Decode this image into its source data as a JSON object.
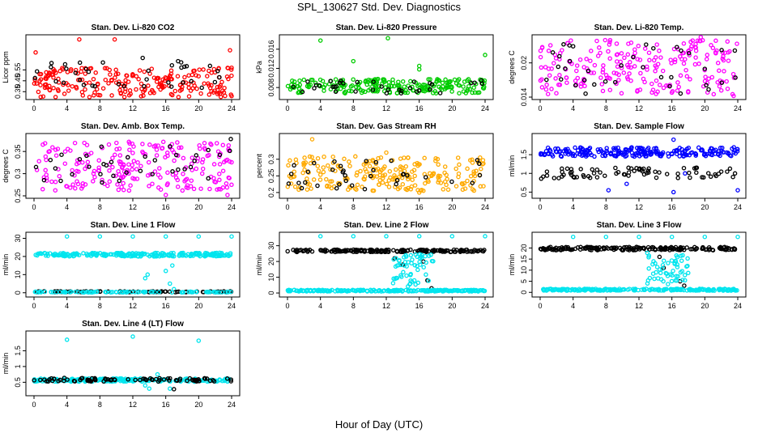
{
  "figure": {
    "title": "SPL_130627  Std. Dev. Diagnostics",
    "xlabel": "Hour of Day (UTC)"
  },
  "chart_data": [
    {
      "type": "scatter",
      "title": "Stan. Dev. Li-820 CO2",
      "ylabel": "Licor ppm",
      "xlim": [
        0,
        24
      ],
      "xticks": [
        0,
        4,
        8,
        12,
        16,
        20,
        24
      ],
      "ylim": [
        0.3,
        0.85
      ],
      "yticks": [
        0.35,
        0.45,
        0.55
      ],
      "series": [
        {
          "color": "#ff0000",
          "density": 1.0,
          "x": [
            0,
            24
          ],
          "y": [
            0.3,
            0.57
          ],
          "outliers": [
            [
              0.2,
              0.71
            ],
            [
              5.5,
              0.83
            ],
            [
              9.8,
              0.83
            ],
            [
              23.8,
              0.73
            ],
            [
              24,
              0.31
            ]
          ]
        },
        {
          "color": "#000000",
          "density": 0.12,
          "x": [
            0,
            24
          ],
          "y": [
            0.36,
            0.62
          ],
          "outliers": [
            [
              13.2,
              0.66
            ],
            [
              17.5,
              0.63
            ]
          ]
        }
      ]
    },
    {
      "type": "scatter",
      "title": "Stan. Dev. Li-820 Pressure",
      "ylabel": "kPa",
      "xlim": [
        0,
        24
      ],
      "xticks": [
        0,
        4,
        8,
        12,
        16,
        20,
        24
      ],
      "ylim": [
        0.006,
        0.0185
      ],
      "yticks": [
        0.008,
        0.012,
        0.016
      ],
      "series": [
        {
          "color": "#00cc00",
          "density": 1.0,
          "x": [
            0,
            24
          ],
          "y": [
            0.0068,
            0.0098
          ],
          "outliers": [
            [
              4,
              0.0178
            ],
            [
              8,
              0.0135
            ],
            [
              12.2,
              0.0183
            ],
            [
              16,
              0.0125
            ],
            [
              24,
              0.0148
            ],
            [
              16,
              0.0118
            ]
          ]
        },
        {
          "color": "#000000",
          "density": 0.12,
          "x": [
            0,
            24
          ],
          "y": [
            0.0068,
            0.0095
          ],
          "outliers": []
        }
      ]
    },
    {
      "type": "scatter",
      "title": "Stan. Dev. Li-820 Temp.",
      "ylabel": "degrees C",
      "xlim": [
        0,
        24
      ],
      "xticks": [
        0,
        4,
        8,
        12,
        16,
        20,
        24
      ],
      "ylim": [
        0.014,
        0.0245
      ],
      "yticks": [
        0.014,
        0.02
      ],
      "series": [
        {
          "color": "#ff00ff",
          "density": 1.0,
          "x": [
            0,
            24
          ],
          "y": [
            0.0145,
            0.024
          ],
          "outliers": [
            [
              19.5,
              0.0245
            ],
            [
              23.5,
              0.0142
            ]
          ]
        },
        {
          "color": "#000000",
          "density": 0.12,
          "x": [
            0,
            24
          ],
          "y": [
            0.0145,
            0.0235
          ],
          "outliers": []
        }
      ]
    },
    {
      "type": "scatter",
      "title": "Stan. Dev. Amb. Box Temp.",
      "ylabel": "degrees C",
      "xlim": [
        0,
        24
      ],
      "xticks": [
        0,
        4,
        8,
        12,
        16,
        20,
        24
      ],
      "ylim": [
        0.25,
        0.385
      ],
      "yticks": [
        0.25,
        0.3,
        0.35
      ],
      "series": [
        {
          "color": "#ff00ff",
          "density": 1.0,
          "x": [
            0,
            24
          ],
          "y": [
            0.262,
            0.372
          ],
          "outliers": [
            [
              16,
              0.252
            ],
            [
              23.5,
              0.252
            ]
          ]
        },
        {
          "color": "#000000",
          "density": 0.12,
          "x": [
            0,
            24
          ],
          "y": [
            0.28,
            0.368
          ],
          "outliers": [
            [
              23.9,
              0.378
            ]
          ]
        }
      ]
    },
    {
      "type": "scatter",
      "title": "Stan. Dev. Gas Stream RH",
      "ylabel": "percent",
      "xlim": [
        0,
        24
      ],
      "xticks": [
        0,
        4,
        8,
        12,
        16,
        20,
        24
      ],
      "ylim": [
        0.19,
        0.37
      ],
      "yticks": [
        0.2,
        0.25,
        0.3
      ],
      "series": [
        {
          "color": "#ffaa00",
          "density": 1.0,
          "x": [
            0,
            24
          ],
          "y": [
            0.205,
            0.31
          ],
          "outliers": [
            [
              3,
              0.36
            ],
            [
              12,
              0.32
            ],
            [
              16,
              0.2
            ]
          ]
        },
        {
          "color": "#000000",
          "density": 0.12,
          "x": [
            0,
            24
          ],
          "y": [
            0.21,
            0.3
          ],
          "outliers": []
        }
      ]
    },
    {
      "type": "scatter",
      "title": "Stan. Dev. Sample Flow",
      "ylabel": "ml/min",
      "xlim": [
        0,
        24
      ],
      "xticks": [
        0,
        4,
        8,
        12,
        16,
        20,
        24
      ],
      "ylim": [
        0.4,
        2.0
      ],
      "yticks": [
        0.5,
        1.0,
        1.5
      ],
      "series": [
        {
          "color": "#0000ff",
          "density": 1.0,
          "x": [
            0,
            24
          ],
          "y": [
            1.45,
            1.7
          ],
          "outliers": [
            [
              8.3,
              0.55
            ],
            [
              10.5,
              0.72
            ],
            [
              16.2,
              1.9
            ],
            [
              16.2,
              0.5
            ],
            [
              17.6,
              1.0
            ],
            [
              24,
              0.55
            ]
          ]
        },
        {
          "color": "#000000",
          "density": 0.3,
          "x": [
            0,
            24
          ],
          "y": [
            0.85,
            1.15
          ],
          "outliers": []
        }
      ]
    },
    {
      "type": "scatter",
      "title": "Stan. Dev. Line 1 Flow",
      "ylabel": "ml/min",
      "xlim": [
        0,
        24
      ],
      "xticks": [
        0,
        4,
        8,
        12,
        16,
        20,
        24
      ],
      "ylim": [
        -1,
        32
      ],
      "yticks": [
        0,
        10,
        20,
        30
      ],
      "series": [
        {
          "color": "#00e5ee",
          "density": 1.0,
          "x": [
            0,
            24
          ],
          "y": [
            20,
            22
          ],
          "outliers": [
            [
              4,
              31
            ],
            [
              8,
              31
            ],
            [
              12,
              31
            ],
            [
              16,
              31
            ],
            [
              20,
              31
            ],
            [
              24,
              31
            ],
            [
              13.5,
              8
            ],
            [
              13.8,
              10
            ],
            [
              16,
              12
            ],
            [
              16.5,
              5
            ],
            [
              16.8,
              15
            ],
            [
              17,
              2
            ]
          ]
        },
        {
          "color": "#000000",
          "density": 0.4,
          "x": [
            0,
            24
          ],
          "y": [
            0.3,
            0.8
          ],
          "outliers": []
        },
        {
          "color": "#00e5ee",
          "density": 0.4,
          "x": [
            0,
            24
          ],
          "y": [
            0.2,
            0.6
          ],
          "outliers": []
        }
      ]
    },
    {
      "type": "scatter",
      "title": "Stan. Dev. Line 2 Flow",
      "ylabel": "ml/min",
      "xlim": [
        0,
        24
      ],
      "xticks": [
        0,
        4,
        8,
        12,
        16,
        20,
        24
      ],
      "ylim": [
        -1,
        37
      ],
      "yticks": [
        0,
        10,
        20,
        30
      ],
      "series": [
        {
          "color": "#000000",
          "density": 0.8,
          "x": [
            0,
            24
          ],
          "y": [
            26,
            27.5
          ],
          "outliers": [
            [
              13,
              22
            ],
            [
              14,
              18
            ],
            [
              16.5,
              20
            ],
            [
              17,
              8
            ],
            [
              17.5,
              3
            ]
          ]
        },
        {
          "color": "#00e5ee",
          "density": 1.0,
          "x": [
            12.8,
            18
          ],
          "y": [
            3,
            25
          ],
          "outliers": [
            [
              4,
              36
            ],
            [
              8,
              36
            ],
            [
              12,
              36
            ],
            [
              16,
              36
            ],
            [
              20,
              36
            ],
            [
              24,
              36
            ]
          ]
        },
        {
          "color": "#00e5ee",
          "density": 1.0,
          "x": [
            0,
            24
          ],
          "y": [
            1.0,
            2.0
          ],
          "outliers": []
        }
      ]
    },
    {
      "type": "scatter",
      "title": "Stan. Dev. Line 3 Flow",
      "ylabel": "ml/min",
      "xlim": [
        0,
        24
      ],
      "xticks": [
        0,
        4,
        8,
        12,
        16,
        20,
        24
      ],
      "ylim": [
        -1,
        26
      ],
      "yticks": [
        0,
        5,
        10,
        15,
        20
      ],
      "series": [
        {
          "color": "#000000",
          "density": 0.8,
          "x": [
            0,
            24
          ],
          "y": [
            19,
            20.5
          ],
          "outliers": [
            [
              14.5,
              16
            ],
            [
              15,
              11
            ],
            [
              17,
              5
            ],
            [
              17.5,
              3
            ]
          ]
        },
        {
          "color": "#00e5ee",
          "density": 1.0,
          "x": [
            13,
            18
          ],
          "y": [
            3,
            18
          ],
          "outliers": [
            [
              4,
              25
            ],
            [
              8,
              25
            ],
            [
              12,
              25
            ],
            [
              16,
              25
            ],
            [
              20,
              25
            ],
            [
              24,
              25
            ]
          ]
        },
        {
          "color": "#00e5ee",
          "density": 1.0,
          "x": [
            0,
            24
          ],
          "y": [
            0.8,
            1.6
          ],
          "outliers": []
        }
      ]
    },
    {
      "type": "scatter",
      "title": "Stan. Dev. Line 4 (LT) Flow",
      "ylabel": "ml/min",
      "xlim": [
        0,
        24
      ],
      "xticks": [
        0,
        4,
        8,
        12,
        16,
        20,
        24
      ],
      "ylim": [
        0.15,
        2.05
      ],
      "yticks": [
        0.5,
        1.0,
        1.5
      ],
      "series": [
        {
          "color": "#00e5ee",
          "density": 1.0,
          "x": [
            0,
            24
          ],
          "y": [
            0.52,
            0.62
          ],
          "outliers": [
            [
              4,
              1.85
            ],
            [
              12,
              1.95
            ],
            [
              20,
              1.82
            ],
            [
              13.5,
              0.4
            ],
            [
              14,
              0.3
            ],
            [
              15,
              0.75
            ],
            [
              16.5,
              0.3
            ]
          ]
        },
        {
          "color": "#000000",
          "density": 0.35,
          "x": [
            0,
            24
          ],
          "y": [
            0.52,
            0.64
          ],
          "outliers": [
            [
              17,
              0.28
            ]
          ]
        }
      ]
    }
  ]
}
